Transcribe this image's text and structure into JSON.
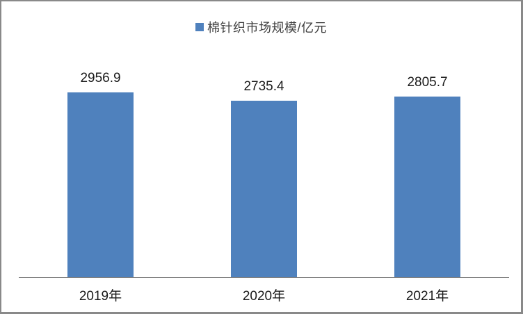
{
  "chart_data": {
    "type": "bar",
    "title": "",
    "categories": [
      "2019年",
      "2020年",
      "2021年"
    ],
    "series": [
      {
        "name": "棉针织市场规模/亿元",
        "values": [
          2956.9,
          2735.4,
          2805.7
        ]
      }
    ],
    "data_labels": [
      "2956.9",
      "2735.4",
      "2805.7"
    ],
    "xlabel": "",
    "ylabel": "",
    "ylim": [
      0,
      3200
    ],
    "y_axis_visible": false,
    "gridlines": false,
    "legend_position": "top",
    "bar_color": "#4F81BD",
    "axis_line_color": "#808080",
    "frame_border_color": "#898989",
    "background_color": "#FFFFFF"
  },
  "legend": {
    "label": "棉针织市场规模/亿元",
    "marker_color": "#4F81BD"
  }
}
